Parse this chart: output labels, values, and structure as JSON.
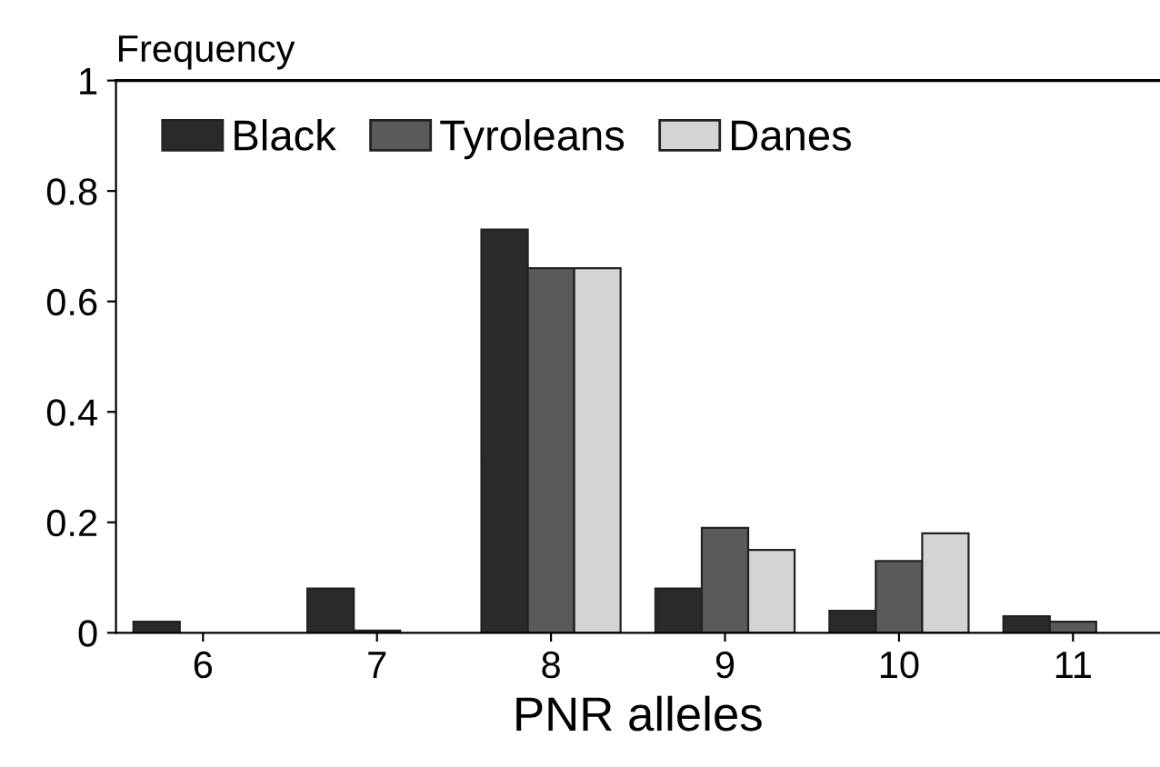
{
  "chart_data": {
    "type": "bar",
    "ylabel": "Frequency",
    "xlabel": "PNR alleles",
    "categories": [
      "6",
      "7",
      "8",
      "9",
      "10",
      "11"
    ],
    "series": [
      {
        "name": "Black",
        "color": "#2a2a2a",
        "values": [
          0.02,
          0.08,
          0.73,
          0.08,
          0.04,
          0.03
        ]
      },
      {
        "name": "Tyroleans",
        "color": "#5a5a5a",
        "values": [
          null,
          0.004,
          0.66,
          0.19,
          0.13,
          0.02
        ]
      },
      {
        "name": "Danes",
        "color": "#d4d4d4",
        "values": [
          null,
          null,
          0.66,
          0.15,
          0.18,
          null
        ]
      }
    ],
    "ylim": [
      0,
      1
    ],
    "yticks": [
      0,
      0.2,
      0.4,
      0.6,
      0.8,
      1
    ],
    "grid": false,
    "legend": "top"
  }
}
